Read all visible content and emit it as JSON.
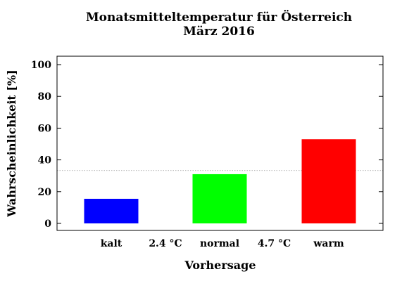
{
  "chart_data": {
    "type": "bar",
    "title": "Monatsmitteltemperatur für Österreich",
    "subtitle": "März 2016",
    "xlabel": "Vorhersage",
    "ylabel": "Wahrscheinlichkeit [%]",
    "ylim": [
      0,
      105
    ],
    "yticks": [
      0,
      20,
      40,
      60,
      80,
      100
    ],
    "categories": [
      "kalt",
      "normal",
      "warm"
    ],
    "values": [
      15.5,
      31,
      53
    ],
    "colors": [
      "#0000ff",
      "#00ff00",
      "#ff0000"
    ],
    "separators": [
      "2.4 °C",
      "4.7 °C"
    ],
    "reference_line": 33.3,
    "grid": false
  }
}
